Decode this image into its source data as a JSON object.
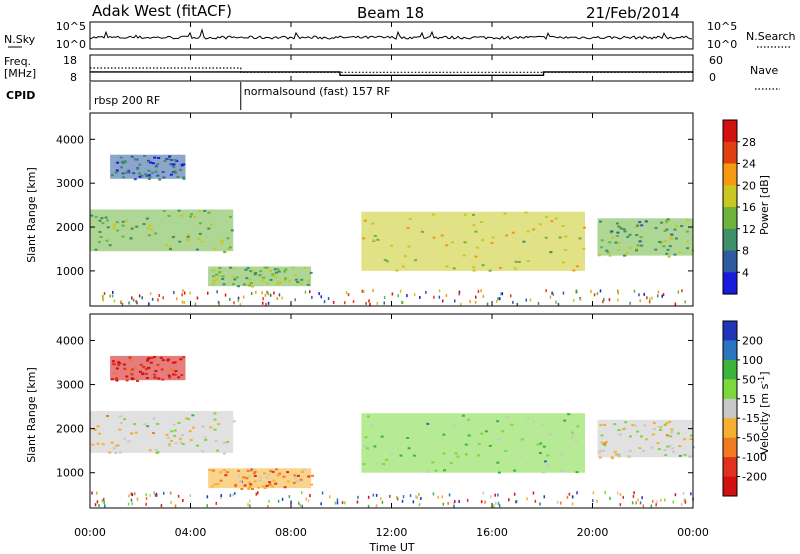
{
  "header": {
    "station": "Adak West (fitACF)",
    "beam": "Beam 18",
    "date": "21/Feb/2014"
  },
  "strip_sky": {
    "left_label": "N.Sky",
    "right_label": "N.Search",
    "left_ticks": [
      "10^5",
      "10^0"
    ],
    "right_ticks": [
      "10^5",
      "10^0"
    ]
  },
  "strip_freq": {
    "left_label_1": "Freq.",
    "left_label_2": "[MHz]",
    "right_label": "Nave",
    "left_ticks": [
      "18",
      "8"
    ],
    "right_ticks": [
      "60",
      "0"
    ],
    "frequency_mhz": [
      {
        "start_hour": 0,
        "end_hour": 9.95,
        "value": 11.5
      },
      {
        "start_hour": 9.95,
        "end_hour": 18.05,
        "value": 10.2
      },
      {
        "start_hour": 18.05,
        "end_hour": 24,
        "value": 11.5
      }
    ],
    "nave": [
      {
        "start_hour": 0,
        "end_hour": 6.0,
        "value": 30
      },
      {
        "start_hour": 6.0,
        "end_hour": 24,
        "value": 20
      }
    ]
  },
  "cpid": {
    "label": "CPID",
    "segments": [
      {
        "text": "rbsp 200 RF",
        "start_hour": 0
      },
      {
        "text": "normalsound (fast) 157 RF",
        "start_hour": 6.0
      }
    ]
  },
  "x_axis": {
    "label": "Time UT",
    "ticks": [
      "00:00",
      "04:00",
      "08:00",
      "12:00",
      "16:00",
      "20:00",
      "00:00"
    ],
    "range_hours": [
      0,
      24
    ]
  },
  "chart_data": [
    {
      "type": "heatmap",
      "parameter": "Power",
      "ylabel": "Slant Range [km]",
      "yticks": [
        "1000",
        "2000",
        "3000",
        "4000"
      ],
      "ylim": [
        200,
        4600
      ],
      "colorbar_label": "Power [dB]",
      "colorbar_ticks": [
        "4",
        "8",
        "12",
        "16",
        "20",
        "24",
        "28"
      ],
      "colorbar_colors": [
        "#1a1adc",
        "#2e5ba0",
        "#3f8f6a",
        "#6cb43c",
        "#c8c820",
        "#f59a10",
        "#e04010",
        "#d21010"
      ],
      "clim": [
        0,
        30
      ],
      "echo_regions": [
        {
          "start_hour": 0.0,
          "end_hour": 5.7,
          "range_km": [
            1450,
            2400
          ],
          "value": 13
        },
        {
          "start_hour": 4.7,
          "end_hour": 8.8,
          "range_km": [
            650,
            1100
          ],
          "value": 13
        },
        {
          "start_hour": 10.8,
          "end_hour": 19.7,
          "range_km": [
            1000,
            2350
          ],
          "value": 16
        },
        {
          "start_hour": 20.2,
          "end_hour": 24.0,
          "range_km": [
            1350,
            2200
          ],
          "value": 12
        },
        {
          "start_hour": 0.8,
          "end_hour": 3.8,
          "range_km": [
            3100,
            3650
          ],
          "value": 6
        }
      ]
    },
    {
      "type": "heatmap",
      "parameter": "Velocity",
      "ylabel": "Slant Range [km]",
      "yticks": [
        "1000",
        "2000",
        "3000",
        "4000"
      ],
      "ylim": [
        200,
        4600
      ],
      "colorbar_label": "Velocity [m s^-1]",
      "colorbar_ticks": [
        "200",
        "100",
        "50",
        "15",
        "-15",
        "-50",
        "-100",
        "-200"
      ],
      "colorbar_colors": [
        "#2234b8",
        "#2a74c0",
        "#3cb43c",
        "#7cd83c",
        "#c8c8c8",
        "#f5b030",
        "#f07a20",
        "#e03020",
        "#d21010"
      ],
      "clim": [
        -250,
        250
      ],
      "echo_regions": [
        {
          "start_hour": 0.0,
          "end_hour": 5.7,
          "range_km": [
            1450,
            2400
          ],
          "value": 0
        },
        {
          "start_hour": 4.7,
          "end_hour": 8.8,
          "range_km": [
            650,
            1100
          ],
          "value": -80
        },
        {
          "start_hour": 10.8,
          "end_hour": 19.7,
          "range_km": [
            1000,
            2350
          ],
          "value": 60
        },
        {
          "start_hour": 20.2,
          "end_hour": 24.0,
          "range_km": [
            1350,
            2200
          ],
          "value": 0
        },
        {
          "start_hour": 0.8,
          "end_hour": 3.8,
          "range_km": [
            3100,
            3650
          ],
          "value": -200
        }
      ]
    }
  ]
}
